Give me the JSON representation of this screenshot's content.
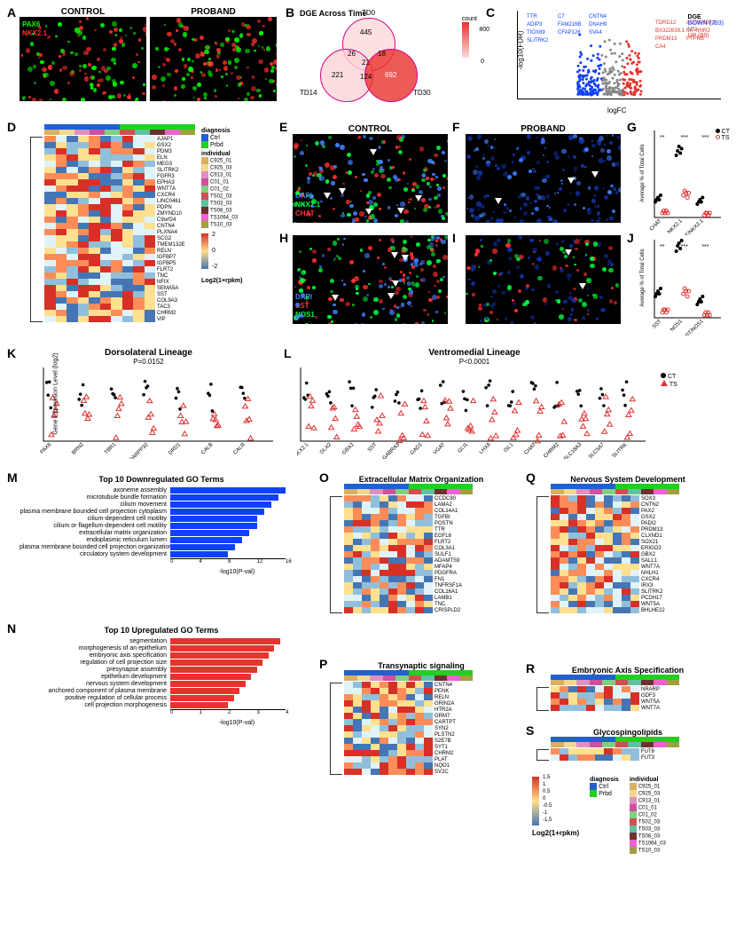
{
  "panelA": {
    "label": "A",
    "header_control": "CONTROL",
    "header_proband": "PROBAND",
    "stain1": "PAX6",
    "stain1_color": "#00ff00",
    "stain2": "NKX2.1",
    "stain2_color": "#ff3030"
  },
  "panelB": {
    "label": "B",
    "title": "DGE Across Time",
    "set1": "TD0",
    "set2": "TD14",
    "set3": "TD30",
    "count_label": "count",
    "counts": {
      "only1": 445,
      "only2": 221,
      "only3": 692,
      "n12": 26,
      "n13": 18,
      "n23": 124,
      "n123": 21
    },
    "scale_max": "800",
    "scale_min": "0",
    "fill1": "#fdd9d9",
    "fill2": "#fbd4d4",
    "fill3": "#e8322d"
  },
  "panelC": {
    "label": "C",
    "title": "DGE",
    "xlabel": "logFC",
    "ylabel": "-log10(FDR)",
    "legend_down": "DOWN (293)",
    "legend_ns": "NS",
    "legend_up": "UP (99)",
    "color_down": "#1040ff",
    "color_ns": "#888888",
    "color_up": "#e8322d",
    "labeled_down": [
      "TTR",
      "C7",
      "CNTN4",
      "ADIP3",
      "FAM216B",
      "DNAH9",
      "TIOX89",
      "CFAP126",
      "SVA4",
      "SLITRK2"
    ],
    "labeled_up": [
      "TDRD12",
      "AC099489.1",
      "BX322639.1",
      "MT-RNR2",
      "PRDM13",
      "PTPRB",
      "CA4"
    ],
    "xlim": [
      -2.5,
      3.0
    ],
    "ylim": [
      0,
      40
    ]
  },
  "panelD": {
    "label": "D",
    "diagnosis_label": "diagnosis",
    "ctrl_label": "Ctrl",
    "prbd_label": "Prbd",
    "ctrl_color": "#2060d0",
    "prbd_color": "#20d020",
    "individual_label": "individual",
    "individuals": [
      {
        "id": "C925_01",
        "c": "#d9b060"
      },
      {
        "id": "C925_03",
        "c": "#f0d890"
      },
      {
        "id": "C913_01",
        "c": "#e090c0"
      },
      {
        "id": "C01_01",
        "c": "#d050a0"
      },
      {
        "id": "C01_02",
        "c": "#80d080"
      },
      {
        "id": "TS02_03",
        "c": "#d05050"
      },
      {
        "id": "TS03_03",
        "c": "#60c0a0"
      },
      {
        "id": "TS08_03",
        "c": "#703030"
      },
      {
        "id": "TS1064_03",
        "c": "#f060d0"
      },
      {
        "id": "TS10_03",
        "c": "#a0a040"
      }
    ],
    "scale_label": "Log2(1+rpkm)",
    "scale_max": "2",
    "scale_mid": "0",
    "scale_min": "-2",
    "genes": [
      "AJAP1",
      "GSX2",
      "PDM3",
      "ELN",
      "MEG3",
      "SLITRK2",
      "FGFR3",
      "EPHA3",
      "WNT7A",
      "CXCR4",
      "LINC0461",
      "PDPN",
      "ZMYND10",
      "C9orf24",
      "CNTN4",
      "PLXNA4",
      "SCG2",
      "TMEM132E",
      "RELN",
      "IGFBP7",
      "IGFBP5",
      "FLRT2",
      "TNC",
      "NFIX",
      "SEMA5A",
      "SST",
      "COL9A3",
      "TAC3",
      "CHRM2",
      "VIP"
    ]
  },
  "panelEF": {
    "labelE": "E",
    "labelF": "F",
    "header_control": "CONTROL",
    "header_proband": "PROBAND",
    "stain1": "DAPI",
    "c1": "#4080ff",
    "stain2": "NKX2.1",
    "c2": "#00ff40",
    "stain3": "CHAT",
    "c3": "#ff3030"
  },
  "panelG": {
    "label": "G",
    "ylabel": "Average % of Total Cells",
    "ct_label": "CT",
    "ts_label": "TS",
    "ct_color": "#000000",
    "ts_color": "#e03030",
    "categories": [
      "CHAT",
      "NKX2.1",
      "CHAT/NKX2.1"
    ],
    "ct_vals": [
      [
        7,
        8,
        9,
        8,
        10
      ],
      [
        28,
        30,
        32,
        29,
        31
      ],
      [
        6,
        7,
        8,
        7,
        9
      ]
    ],
    "ts_vals": [
      [
        2,
        3,
        2,
        3,
        2
      ],
      [
        10,
        12,
        11,
        9,
        11
      ],
      [
        1,
        2,
        2,
        1,
        2
      ]
    ],
    "sig": [
      "**",
      "***",
      "***"
    ],
    "ymax": 40
  },
  "panelHI": {
    "labelH": "H",
    "labelI": "I",
    "stain1": "DAPI",
    "c1": "#4080ff",
    "stain2": "SST",
    "c2": "#ff3030",
    "stain3": "NOS1",
    "c3": "#00ff40"
  },
  "panelJ": {
    "label": "J",
    "ylabel": "Average % of Total Cells",
    "categories": [
      "SST",
      "NOS1",
      "SST/NOS1"
    ],
    "ct_vals": [
      [
        8,
        9,
        10,
        9,
        11
      ],
      [
        25,
        27,
        28,
        26,
        29
      ],
      [
        5,
        6,
        7,
        6,
        8
      ]
    ],
    "ts_vals": [
      [
        2,
        3,
        3,
        2,
        3
      ],
      [
        9,
        11,
        10,
        8,
        10
      ],
      [
        1,
        2,
        1,
        2,
        1
      ]
    ],
    "sig": [
      "**",
      "***",
      "***"
    ],
    "ymax": 30
  },
  "panelK": {
    "label": "K",
    "title": "Dorsolateral Lineage",
    "pval": "P=0.0152",
    "ylabel": "Gene Expression Level (log2)",
    "ct_label": "CT",
    "ts_label": "TS",
    "genes": [
      "PAX6",
      "BRN2",
      "TBR1",
      "DARPP32",
      "DRD1",
      "CALB",
      "CALR"
    ],
    "ylim": [
      -2,
      10
    ]
  },
  "panelL": {
    "label": "L",
    "title": "Ventromedial Lineage",
    "pval": "P<0.0001",
    "genes": [
      "NKX2.1",
      "DLX2",
      "GBX2",
      "SST",
      "GABRA3",
      "GAD1",
      "VGAT",
      "GLI1",
      "LHX8",
      "ISL1",
      "CHAT",
      "CHRM2",
      "SLC18A3",
      "SLC5A7",
      "SLITRK"
    ],
    "ylim": [
      -10,
      2
    ]
  },
  "panelM": {
    "label": "M",
    "title": "Top 10 Downregulated GO Terms",
    "color": "#1040ff",
    "xlabel": "-log10(P-val)",
    "terms": [
      {
        "t": "axoneme assembly",
        "v": 16
      },
      {
        "t": "microtubule bundle formation",
        "v": 15
      },
      {
        "t": "cilium movement",
        "v": 14
      },
      {
        "t": "plasma membrane bounded cell projection cytoplasm",
        "v": 13
      },
      {
        "t": "cilium-dependent cell motility",
        "v": 12
      },
      {
        "t": "cilium or flagellum-dependent cell motility",
        "v": 12
      },
      {
        "t": "extracellular matrix organization",
        "v": 11
      },
      {
        "t": "endoplasmic reticulum lumen",
        "v": 10
      },
      {
        "t": "plasma membrane bounded cell projection organization",
        "v": 9
      },
      {
        "t": "circulatory system development",
        "v": 8
      }
    ],
    "xmax": 16
  },
  "panelN": {
    "label": "N",
    "title": "Top 10 Upregulated GO Terms",
    "color": "#e8322d",
    "xlabel": "-log10(P-val)",
    "terms": [
      {
        "t": "segmentation",
        "v": 3.8
      },
      {
        "t": "morphogenesis of an epithelium",
        "v": 3.6
      },
      {
        "t": "embryonic axis specification",
        "v": 3.4
      },
      {
        "t": "regulation of cell projection size",
        "v": 3.2
      },
      {
        "t": "presynapse assembly",
        "v": 3.0
      },
      {
        "t": "epithelium development",
        "v": 2.8
      },
      {
        "t": "nervous system development",
        "v": 2.6
      },
      {
        "t": "anchored component of plasma membrane",
        "v": 2.4
      },
      {
        "t": "positive regulation of cellular process",
        "v": 2.2
      },
      {
        "t": "cell projection morphogenesis",
        "v": 2.0
      }
    ],
    "xmax": 4
  },
  "panelO": {
    "label": "O",
    "title": "Extracellular Matrix Organization",
    "genes": [
      "CCDC80",
      "LAMA2",
      "COL14A1",
      "TGFBI",
      "POSTN",
      "TTR",
      "EGFL6",
      "FLRT2",
      "COL3A1",
      "SULF1",
      "ADAMTS9",
      "MFAP4",
      "PDGFRA",
      "FN1",
      "TNFRSF1A",
      "COL16A1",
      "LAMB1",
      "TNC",
      "CRISPLD2"
    ]
  },
  "panelP": {
    "label": "P",
    "title": "Transynaptic signaling",
    "genes": [
      "CNTN4",
      "PENK",
      "RELN",
      "GRIN2A",
      "HTR2A",
      "GRM7",
      "CARTPT",
      "SYN2",
      "PLSTN2",
      "S2E7B",
      "SYT1",
      "CHRM2",
      "PLAT",
      "NQO1",
      "SV2C"
    ]
  },
  "panelQ": {
    "label": "Q",
    "title": "Nervous System Development",
    "genes": [
      "SOX3",
      "CNTN2",
      "PAX2",
      "GSX2",
      "PADI2",
      "PRDM13",
      "CLXND1",
      "SOX21",
      "ERIGO3",
      "GBX2",
      "SALL1",
      "WNT7A",
      "NHLH1",
      "CXCR4",
      "IRX3",
      "SLITRK2",
      "PCDH17",
      "WNT5A",
      "BHLHE22"
    ]
  },
  "panelR": {
    "label": "R",
    "title": "Embryonic Axis Specification",
    "genes": [
      "NRARP",
      "GDF3",
      "WNT5A",
      "WNT7A"
    ]
  },
  "panelS": {
    "label": "S",
    "title": "Glycospingolipids",
    "genes": [
      "FUT6",
      "FUT3"
    ]
  },
  "heatmap_colors": {
    "high": "#d73027",
    "midhigh": "#fdae61",
    "mid": "#fee08b",
    "midlow": "#abd9e9",
    "low": "#4575b4"
  },
  "shared_legend": {
    "diagnosis_label": "diagnosis",
    "ctrl": "Ctrl",
    "prbd": "Prbd",
    "ctrl_color": "#2060d0",
    "prbd_color": "#20d020",
    "individual_label": "individual",
    "scale_label": "Log2(1+rpkm)",
    "scale_vals": [
      "1.5",
      "1",
      "0.5",
      "0",
      "-0.5",
      "-1",
      "-1.5"
    ]
  }
}
